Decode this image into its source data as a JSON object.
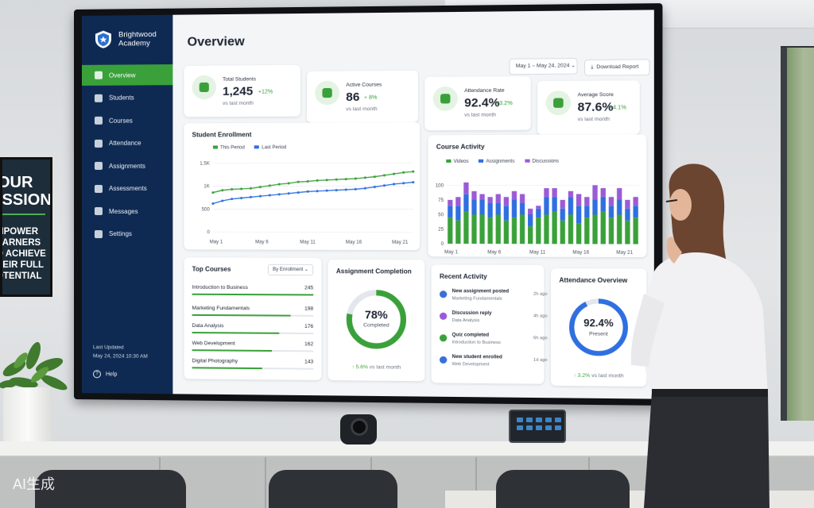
{
  "sidebar": {
    "brand_line1": "Brightwood",
    "brand_line2": "Academy",
    "items": [
      {
        "label": "Overview"
      },
      {
        "label": "Students"
      },
      {
        "label": "Courses"
      },
      {
        "label": "Attendance"
      },
      {
        "label": "Assignments"
      },
      {
        "label": "Assessments"
      },
      {
        "label": "Messages"
      },
      {
        "label": "Settings"
      }
    ],
    "last_updated_label": "Last Updated",
    "last_updated_value": "May 24, 2024 10:30 AM",
    "help_label": "Help"
  },
  "header": {
    "title": "Overview",
    "date_range": "May 1 – May 24, 2024",
    "download_label": "Download Report"
  },
  "kpis": [
    {
      "label": "Total Students",
      "value": "1,245",
      "delta": "+12%",
      "sub": "vs last month"
    },
    {
      "label": "Active Courses",
      "value": "86",
      "delta": "+ 8%",
      "sub": "vs last month"
    },
    {
      "label": "Attendance Rate",
      "value": "92.4%",
      "delta": "+3.2%",
      "sub": "vs last month"
    },
    {
      "label": "Average Score",
      "value": "87.6%",
      "delta": "+4.1%",
      "sub": "vs last month"
    }
  ],
  "enrollment": {
    "title": "Student Enrollment",
    "legend_this": "This Period",
    "legend_last": "Last Period",
    "y_ticks": [
      "1.5K",
      "1K",
      "500",
      "0"
    ],
    "x_ticks": [
      "May 1",
      "May 6",
      "May 11",
      "May 16",
      "May 21"
    ]
  },
  "activity": {
    "title": "Course Activity",
    "legend_videos": "Videos",
    "legend_assignments": "Assignments",
    "legend_discussions": "Discussions",
    "y_ticks": [
      "100",
      "75",
      "50",
      "25",
      "0"
    ],
    "x_ticks": [
      "May 1",
      "May 6",
      "May 11",
      "May 16",
      "May 21"
    ]
  },
  "top_courses": {
    "title": "Top Courses",
    "sort_label": "By Enrollment",
    "items": [
      {
        "name": "Introduction to Business",
        "value": "245",
        "share": 1.0
      },
      {
        "name": "Marketing Fundamentals",
        "value": "198",
        "share": 0.81
      },
      {
        "name": "Data Analysis",
        "value": "176",
        "share": 0.72
      },
      {
        "name": "Web Development",
        "value": "162",
        "share": 0.66
      },
      {
        "name": "Digital Photography",
        "value": "143",
        "share": 0.58
      }
    ]
  },
  "assignment_completion": {
    "title": "Assignment Completion",
    "value": "78%",
    "caption": "Completed",
    "percent": 78,
    "delta": "↑ 5.6%",
    "delta_sub": "vs last month"
  },
  "recent_activity": {
    "title": "Recent Activity",
    "items": [
      {
        "title": "New assignment posted",
        "sub": "Marketing Fundamentals",
        "time": "2h ago",
        "color": "#3a6fd8"
      },
      {
        "title": "Discussion reply",
        "sub": "Data Analysis",
        "time": "4h ago",
        "color": "#9b5bd6"
      },
      {
        "title": "Quiz completed",
        "sub": "Introduction to Business",
        "time": "6h ago",
        "color": "#3aa13a"
      },
      {
        "title": "New student enrolled",
        "sub": "Web Development",
        "time": "1d ago",
        "color": "#3a6fd8"
      }
    ]
  },
  "attendance_overview": {
    "title": "Attendance Overview",
    "value": "92.4%",
    "caption": "Present",
    "percent": 92.4,
    "delta": "↑ 3.2%",
    "delta_sub": "vs last month"
  },
  "colors": {
    "green": "#3aa13a",
    "blue": "#2f6fe0",
    "purple": "#9b5bd6",
    "navy": "#0f2a52"
  },
  "chart_data": [
    {
      "type": "line",
      "title": "Student Enrollment",
      "x": [
        "May 1",
        "May 3",
        "May 4",
        "May 5",
        "May 6",
        "May 7",
        "May 8",
        "May 10",
        "May 11",
        "May 12",
        "May 13",
        "May 14",
        "May 15",
        "May 16",
        "May 17",
        "May 18",
        "May 19",
        "May 20",
        "May 21",
        "May 22",
        "May 23",
        "May 24"
      ],
      "series": [
        {
          "name": "This Period",
          "values": [
            860,
            910,
            930,
            940,
            950,
            980,
            1010,
            1040,
            1060,
            1090,
            1100,
            1120,
            1130,
            1140,
            1150,
            1160,
            1180,
            1200,
            1230,
            1260,
            1290,
            1310
          ]
        },
        {
          "name": "Last Period",
          "values": [
            620,
            680,
            720,
            740,
            760,
            780,
            800,
            820,
            840,
            860,
            880,
            890,
            900,
            910,
            920,
            930,
            950,
            980,
            1010,
            1040,
            1060,
            1080
          ]
        }
      ],
      "ylim": [
        0,
        1500
      ],
      "grid": true,
      "legend": "top"
    },
    {
      "type": "bar",
      "title": "Course Activity",
      "stacked": true,
      "x": [
        "May 1",
        "May 2",
        "May 3",
        "May 4",
        "May 5",
        "May 6",
        "May 7",
        "May 8",
        "May 9",
        "May 10",
        "May 11",
        "May 12",
        "May 13",
        "May 14",
        "May 15",
        "May 16",
        "May 17",
        "May 18",
        "May 19",
        "May 20",
        "May 21",
        "May 22",
        "May 23",
        "May 24"
      ],
      "series": [
        {
          "name": "Videos",
          "values": [
            45,
            40,
            55,
            50,
            50,
            45,
            50,
            40,
            45,
            50,
            30,
            45,
            50,
            55,
            40,
            50,
            35,
            45,
            50,
            55,
            45,
            50,
            40,
            45
          ]
        },
        {
          "name": "Assignments",
          "values": [
            20,
            25,
            30,
            25,
            25,
            25,
            20,
            25,
            30,
            20,
            20,
            15,
            30,
            25,
            20,
            30,
            30,
            20,
            25,
            25,
            20,
            25,
            20,
            20
          ]
        },
        {
          "name": "Discussions",
          "values": [
            10,
            15,
            20,
            15,
            10,
            10,
            15,
            15,
            15,
            15,
            10,
            5,
            15,
            15,
            15,
            10,
            20,
            15,
            25,
            15,
            15,
            20,
            15,
            15
          ]
        }
      ],
      "ylim": [
        0,
        100
      ],
      "grid": true,
      "legend": "top"
    }
  ]
}
